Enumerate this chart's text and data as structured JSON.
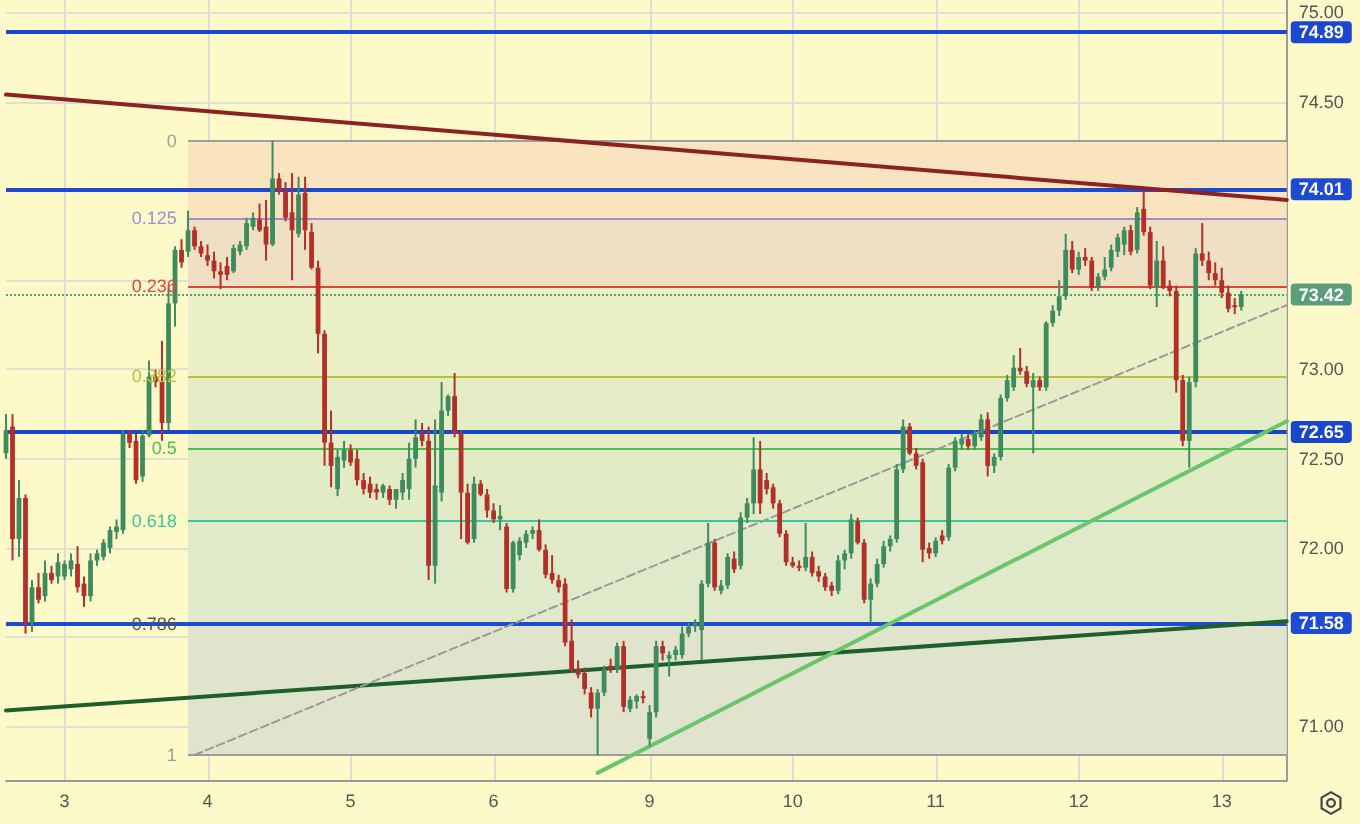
{
  "chart_data": {
    "type": "candlestick",
    "categories": [
      null,
      null,
      null,
      null,
      null,
      null,
      null,
      null,
      null,
      "3",
      null,
      null,
      null,
      null,
      null,
      null,
      null,
      null,
      null,
      null,
      null,
      null,
      null,
      null,
      null,
      null,
      null,
      null,
      null,
      null,
      null,
      "4",
      null,
      null,
      null,
      null,
      null,
      null,
      null,
      null,
      null,
      null,
      null,
      null,
      null,
      null,
      null,
      null,
      null,
      null,
      null,
      null,
      null,
      "5",
      null,
      null,
      null,
      null,
      null,
      null,
      null,
      null,
      null,
      null,
      null,
      null,
      null,
      null,
      null,
      null,
      null,
      null,
      null,
      null,
      null,
      "6",
      null,
      null,
      null,
      null,
      null,
      null,
      null,
      null,
      null,
      null,
      null,
      null,
      null,
      null,
      null,
      null,
      null,
      null,
      null,
      null,
      null,
      null,
      null,
      "9",
      null,
      null,
      null,
      null,
      null,
      null,
      null,
      null,
      null,
      null,
      null,
      null,
      null,
      null,
      null,
      null,
      null,
      null,
      null,
      null,
      null,
      "10",
      null,
      null,
      null,
      null,
      null,
      null,
      null,
      null,
      null,
      null,
      null,
      null,
      null,
      null,
      null,
      null,
      null,
      null,
      null,
      null,
      null,
      "11",
      null,
      null,
      null,
      null,
      null,
      null,
      null,
      null,
      null,
      null,
      null,
      null,
      null,
      null,
      null,
      null,
      null,
      null,
      null,
      null,
      null,
      "12",
      null,
      null,
      null,
      null,
      null,
      null,
      null,
      null,
      null,
      null,
      null,
      null,
      null,
      null,
      null,
      null,
      null,
      null,
      null,
      null,
      null,
      "13",
      null,
      null,
      null,
      null,
      null,
      null,
      null,
      null,
      null,
      null
    ],
    "ohlc": [
      [
        72.53,
        72.75,
        72.5,
        72.66
      ],
      [
        72.68,
        72.75,
        71.93,
        72.05
      ],
      [
        72.05,
        72.38,
        71.95,
        72.28
      ],
      [
        72.28,
        72.3,
        71.52,
        71.58
      ],
      [
        71.58,
        71.82,
        71.53,
        71.78
      ],
      [
        71.78,
        71.86,
        71.69,
        71.71
      ],
      [
        71.73,
        71.93,
        71.7,
        71.86
      ],
      [
        71.86,
        71.9,
        71.8,
        71.82
      ],
      [
        71.84,
        71.97,
        71.8,
        71.92
      ],
      [
        71.84,
        71.93,
        71.82,
        71.91
      ],
      [
        71.88,
        71.97,
        71.84,
        71.93
      ],
      [
        71.91,
        72.01,
        71.75,
        71.78
      ],
      [
        71.8,
        71.84,
        71.67,
        71.73
      ],
      [
        71.73,
        71.97,
        71.7,
        71.93
      ],
      [
        71.93,
        71.99,
        71.9,
        71.97
      ],
      [
        71.95,
        72.05,
        71.93,
        72.03
      ],
      [
        72.0,
        72.12,
        71.97,
        72.1
      ],
      [
        72.09,
        72.16,
        72.05,
        72.12
      ],
      [
        72.1,
        72.66,
        72.08,
        72.64
      ],
      [
        72.64,
        72.66,
        72.56,
        72.59
      ],
      [
        72.6,
        72.64,
        72.36,
        72.38
      ],
      [
        72.4,
        72.66,
        72.37,
        72.63
      ],
      [
        72.63,
        73.05,
        72.62,
        72.96
      ],
      [
        72.96,
        73.0,
        72.9,
        72.93
      ],
      [
        72.93,
        73.16,
        72.6,
        72.7
      ],
      [
        72.7,
        73.46,
        72.66,
        73.37
      ],
      [
        73.37,
        73.69,
        73.24,
        73.67
      ],
      [
        73.67,
        73.73,
        73.57,
        73.6
      ],
      [
        73.66,
        73.89,
        73.63,
        73.78
      ],
      [
        73.78,
        73.8,
        73.67,
        73.69
      ],
      [
        73.69,
        73.72,
        73.63,
        73.65
      ],
      [
        73.64,
        73.7,
        73.58,
        73.61
      ],
      [
        73.61,
        73.66,
        73.51,
        73.55
      ],
      [
        73.55,
        73.6,
        73.45,
        73.53
      ],
      [
        73.58,
        73.63,
        73.5,
        73.53
      ],
      [
        73.55,
        73.7,
        73.54,
        73.68
      ],
      [
        73.66,
        73.72,
        73.64,
        73.7
      ],
      [
        73.69,
        73.85,
        73.67,
        73.82
      ],
      [
        73.8,
        73.88,
        73.78,
        73.85
      ],
      [
        73.84,
        73.93,
        73.77,
        73.78
      ],
      [
        73.8,
        73.95,
        73.61,
        73.7
      ],
      [
        73.7,
        74.28,
        73.69,
        74.07
      ],
      [
        74.07,
        74.1,
        73.98,
        74.0
      ],
      [
        74.0,
        74.05,
        73.83,
        73.85
      ],
      [
        73.88,
        74.1,
        73.5,
        73.78
      ],
      [
        73.76,
        74.08,
        73.74,
        73.98
      ],
      [
        73.99,
        74.08,
        73.67,
        73.78
      ],
      [
        73.77,
        73.82,
        73.56,
        73.57
      ],
      [
        73.57,
        73.61,
        73.09,
        73.2
      ],
      [
        73.2,
        73.22,
        72.46,
        72.59
      ],
      [
        72.59,
        72.77,
        72.34,
        72.46
      ],
      [
        72.33,
        72.55,
        72.29,
        72.51
      ],
      [
        72.49,
        72.6,
        72.45,
        72.55
      ],
      [
        72.55,
        72.58,
        72.46,
        72.48
      ],
      [
        72.5,
        72.55,
        72.35,
        72.38
      ],
      [
        72.38,
        72.42,
        72.3,
        72.33
      ],
      [
        72.36,
        72.4,
        72.28,
        72.31
      ],
      [
        72.33,
        72.36,
        72.27,
        72.31
      ],
      [
        72.31,
        72.36,
        72.28,
        72.35
      ],
      [
        72.33,
        72.35,
        72.24,
        72.27
      ],
      [
        72.27,
        72.33,
        72.22,
        72.33
      ],
      [
        72.31,
        72.42,
        72.27,
        72.38
      ],
      [
        72.33,
        72.59,
        72.27,
        72.5
      ],
      [
        72.5,
        72.72,
        72.45,
        72.62
      ],
      [
        72.64,
        72.7,
        72.57,
        72.6
      ],
      [
        72.6,
        72.68,
        71.82,
        71.9
      ],
      [
        71.9,
        72.72,
        71.8,
        72.35
      ],
      [
        72.31,
        72.93,
        72.26,
        72.77
      ],
      [
        72.77,
        72.86,
        72.74,
        72.85
      ],
      [
        72.85,
        72.98,
        72.62,
        72.64
      ],
      [
        72.64,
        72.66,
        72.05,
        72.31
      ],
      [
        72.31,
        72.36,
        72.02,
        72.03
      ],
      [
        72.05,
        72.4,
        72.03,
        72.36
      ],
      [
        72.36,
        72.38,
        72.29,
        72.3
      ],
      [
        72.3,
        72.33,
        72.17,
        72.21
      ],
      [
        72.21,
        72.25,
        72.14,
        72.16
      ],
      [
        72.16,
        72.24,
        72.1,
        72.18
      ],
      [
        72.12,
        72.14,
        71.75,
        71.77
      ],
      [
        71.77,
        72.04,
        71.75,
        72.03
      ],
      [
        71.96,
        72.06,
        71.93,
        72.04
      ],
      [
        72.03,
        72.1,
        72.0,
        72.08
      ],
      [
        72.08,
        72.12,
        72.05,
        72.1
      ],
      [
        72.1,
        72.16,
        71.98,
        71.99
      ],
      [
        71.99,
        72.02,
        71.83,
        71.85
      ],
      [
        71.86,
        71.96,
        71.8,
        71.82
      ],
      [
        71.82,
        71.85,
        71.75,
        71.78
      ],
      [
        71.8,
        71.83,
        71.45,
        71.47
      ],
      [
        71.48,
        71.6,
        71.3,
        71.32
      ],
      [
        71.32,
        71.37,
        71.27,
        71.29
      ],
      [
        71.3,
        71.33,
        71.18,
        71.21
      ],
      [
        71.19,
        71.22,
        71.05,
        71.1
      ],
      [
        71.1,
        71.21,
        70.84,
        71.19
      ],
      [
        71.19,
        71.34,
        71.17,
        71.32
      ],
      [
        71.34,
        71.38,
        71.3,
        71.32
      ],
      [
        71.32,
        71.47,
        71.3,
        71.45
      ],
      [
        71.45,
        71.48,
        71.08,
        71.11
      ],
      [
        71.1,
        71.17,
        71.08,
        71.15
      ],
      [
        71.14,
        71.18,
        71.1,
        71.17
      ],
      [
        71.17,
        71.2,
        71.13,
        71.16
      ],
      [
        70.93,
        71.12,
        70.89,
        71.08
      ],
      [
        71.08,
        71.48,
        71.05,
        71.45
      ],
      [
        71.45,
        71.48,
        71.37,
        71.41
      ],
      [
        71.38,
        71.42,
        71.28,
        71.4
      ],
      [
        71.4,
        71.45,
        71.37,
        71.43
      ],
      [
        71.4,
        71.56,
        71.38,
        71.52
      ],
      [
        71.52,
        71.58,
        71.5,
        71.56
      ],
      [
        71.56,
        71.6,
        71.53,
        71.58
      ],
      [
        71.54,
        71.82,
        71.37,
        71.8
      ],
      [
        71.8,
        72.14,
        71.78,
        72.03
      ],
      [
        72.03,
        72.05,
        71.76,
        71.78
      ],
      [
        71.76,
        71.82,
        71.74,
        71.79
      ],
      [
        71.79,
        71.97,
        71.77,
        71.95
      ],
      [
        71.94,
        71.98,
        71.86,
        71.88
      ],
      [
        71.9,
        72.2,
        71.88,
        72.17
      ],
      [
        72.17,
        72.28,
        72.14,
        72.25
      ],
      [
        72.25,
        72.62,
        72.19,
        72.44
      ],
      [
        72.44,
        72.6,
        72.19,
        72.25
      ],
      [
        72.38,
        72.42,
        72.3,
        72.33
      ],
      [
        72.34,
        72.36,
        72.22,
        72.25
      ],
      [
        72.25,
        72.27,
        72.06,
        72.08
      ],
      [
        72.08,
        72.1,
        71.9,
        71.92
      ],
      [
        71.92,
        71.95,
        71.89,
        71.9
      ],
      [
        71.9,
        71.93,
        71.87,
        71.89
      ],
      [
        71.89,
        72.14,
        71.87,
        71.95
      ],
      [
        71.95,
        71.98,
        71.84,
        71.86
      ],
      [
        71.87,
        71.9,
        71.81,
        71.84
      ],
      [
        71.84,
        71.86,
        71.76,
        71.78
      ],
      [
        71.79,
        71.81,
        71.73,
        71.76
      ],
      [
        71.76,
        71.96,
        71.74,
        71.93
      ],
      [
        71.93,
        71.99,
        71.88,
        71.97
      ],
      [
        71.97,
        72.19,
        71.94,
        72.16
      ],
      [
        72.15,
        72.17,
        72.02,
        72.03
      ],
      [
        72.03,
        72.05,
        71.69,
        71.71
      ],
      [
        71.71,
        71.83,
        71.58,
        71.8
      ],
      [
        71.8,
        71.94,
        71.78,
        71.91
      ],
      [
        71.91,
        72.04,
        71.89,
        72.01
      ],
      [
        72.01,
        72.07,
        71.98,
        72.05
      ],
      [
        72.05,
        72.47,
        72.03,
        72.44
      ],
      [
        72.44,
        72.72,
        72.42,
        72.68
      ],
      [
        72.68,
        72.7,
        72.52,
        72.53
      ],
      [
        72.53,
        72.56,
        72.44,
        72.46
      ],
      [
        72.48,
        72.5,
        71.92,
        71.99
      ],
      [
        72.0,
        72.03,
        71.94,
        71.97
      ],
      [
        71.97,
        72.06,
        71.95,
        72.04
      ],
      [
        72.07,
        72.1,
        72.02,
        72.04
      ],
      [
        72.06,
        72.47,
        72.04,
        72.45
      ],
      [
        72.45,
        72.62,
        72.43,
        72.6
      ],
      [
        72.58,
        72.64,
        72.55,
        72.61
      ],
      [
        72.61,
        72.64,
        72.55,
        72.57
      ],
      [
        72.57,
        72.66,
        72.55,
        72.64
      ],
      [
        72.62,
        72.75,
        72.6,
        72.72
      ],
      [
        72.72,
        72.76,
        72.4,
        72.46
      ],
      [
        72.46,
        72.53,
        72.42,
        72.51
      ],
      [
        72.51,
        72.86,
        72.49,
        72.84
      ],
      [
        72.84,
        72.97,
        72.82,
        72.94
      ],
      [
        72.9,
        73.08,
        72.88,
        73.01
      ],
      [
        73.01,
        73.12,
        72.97,
        72.99
      ],
      [
        72.99,
        73.02,
        72.9,
        72.92
      ],
      [
        72.9,
        72.98,
        72.53,
        72.94
      ],
      [
        72.94,
        72.96,
        72.88,
        72.9
      ],
      [
        72.9,
        73.27,
        72.88,
        73.26
      ],
      [
        73.26,
        73.36,
        73.24,
        73.33
      ],
      [
        73.33,
        73.5,
        73.3,
        73.41
      ],
      [
        73.41,
        73.76,
        73.39,
        73.67
      ],
      [
        73.67,
        73.72,
        73.54,
        73.56
      ],
      [
        73.56,
        73.66,
        73.53,
        73.63
      ],
      [
        73.63,
        73.68,
        73.58,
        73.61
      ],
      [
        73.61,
        73.63,
        73.44,
        73.46
      ],
      [
        73.46,
        73.54,
        73.44,
        73.52
      ],
      [
        73.52,
        73.63,
        73.5,
        73.56
      ],
      [
        73.57,
        73.7,
        73.55,
        73.67
      ],
      [
        73.66,
        73.76,
        73.63,
        73.74
      ],
      [
        73.7,
        73.8,
        73.64,
        73.78
      ],
      [
        73.78,
        73.81,
        73.64,
        73.66
      ],
      [
        73.67,
        73.91,
        73.65,
        73.88
      ],
      [
        73.9,
        74.0,
        73.75,
        73.77
      ],
      [
        73.77,
        73.8,
        73.45,
        73.47
      ],
      [
        73.46,
        73.72,
        73.35,
        73.61
      ],
      [
        73.61,
        73.69,
        73.45,
        73.46
      ],
      [
        73.47,
        73.5,
        73.41,
        73.44
      ],
      [
        73.44,
        73.47,
        72.87,
        72.94
      ],
      [
        72.94,
        72.97,
        72.57,
        72.6
      ],
      [
        72.6,
        72.96,
        72.45,
        72.93
      ],
      [
        72.93,
        73.68,
        72.9,
        73.65
      ],
      [
        73.65,
        73.82,
        73.58,
        73.61
      ],
      [
        73.61,
        73.66,
        73.5,
        73.54
      ],
      [
        73.54,
        73.6,
        73.47,
        73.5
      ],
      [
        73.5,
        73.57,
        73.4,
        73.43
      ],
      [
        73.43,
        73.47,
        73.32,
        73.34
      ],
      [
        73.36,
        73.4,
        73.31,
        73.35
      ],
      [
        73.35,
        73.44,
        73.33,
        73.42
      ],
      null,
      null,
      null,
      null,
      null,
      null,
      null
    ],
    "colors": [
      "#3e8b5e",
      "#b33029",
      "#3e8b5e",
      "#b33029",
      "#3e8b5e",
      "#b33029",
      "#3e8b5e",
      "#b33029",
      "#3e8b5e",
      "#3e8b5e",
      "#3e8b5e",
      "#b33029",
      "#b33029",
      "#3e8b5e",
      "#3e8b5e",
      "#3e8b5e",
      "#3e8b5e",
      "#3e8b5e",
      "#3e8b5e",
      "#b33029",
      "#b33029",
      "#3e8b5e",
      "#3e8b5e",
      "#b33029",
      "#b33029",
      "#3e8b5e",
      "#3e8b5e",
      "#b33029",
      "#3e8b5e",
      "#b33029",
      "#b33029",
      "#b33029",
      "#b33029",
      "#b33029",
      "#b33029",
      "#3e8b5e",
      "#3e8b5e",
      "#3e8b5e",
      "#3e8b5e",
      "#b33029",
      "#b33029",
      "#3e8b5e",
      "#b33029",
      "#b33029",
      "#b33029",
      "#3e8b5e",
      "#b33029",
      "#b33029",
      "#b33029",
      "#b33029",
      "#b33029",
      "#3e8b5e",
      "#3e8b5e",
      "#b33029",
      "#b33029",
      "#b33029",
      "#b33029",
      "#b33029",
      "#3e8b5e",
      "#b33029",
      "#3e8b5e",
      "#3e8b5e",
      "#3e8b5e",
      "#3e8b5e",
      "#b33029",
      "#b33029",
      "#3e8b5e",
      "#3e8b5e",
      "#3e8b5e",
      "#b33029",
      "#b33029",
      "#b33029",
      "#3e8b5e",
      "#b33029",
      "#b33029",
      "#b33029",
      "#3e8b5e",
      "#b33029",
      "#3e8b5e",
      "#3e8b5e",
      "#3e8b5e",
      "#3e8b5e",
      "#b33029",
      "#b33029",
      "#b33029",
      "#b33029",
      "#b33029",
      "#b33029",
      "#b33029",
      "#b33029",
      "#b33029",
      "#3e8b5e",
      "#3e8b5e",
      "#b33029",
      "#3e8b5e",
      "#b33029",
      "#3e8b5e",
      "#3e8b5e",
      "#b33029",
      "#3e8b5e",
      "#3e8b5e",
      "#b33029",
      "#3e8b5e",
      "#3e8b5e",
      "#3e8b5e",
      "#3e8b5e",
      "#3e8b5e",
      "#3e8b5e",
      "#3e8b5e",
      "#b33029",
      "#3e8b5e",
      "#3e8b5e",
      "#b33029",
      "#3e8b5e",
      "#3e8b5e",
      "#3e8b5e",
      "#b33029",
      "#b33029",
      "#b33029",
      "#b33029",
      "#b33029",
      "#b33029",
      "#b33029",
      "#3e8b5e",
      "#b33029",
      "#b33029",
      "#b33029",
      "#b33029",
      "#3e8b5e",
      "#3e8b5e",
      "#3e8b5e",
      "#b33029",
      "#b33029",
      "#3e8b5e",
      "#3e8b5e",
      "#3e8b5e",
      "#3e8b5e",
      "#3e8b5e",
      "#3e8b5e",
      "#b33029",
      "#b33029",
      "#b33029",
      "#b33029",
      "#3e8b5e",
      "#b33029",
      "#3e8b5e",
      "#3e8b5e",
      "#3e8b5e",
      "#b33029",
      "#3e8b5e",
      "#3e8b5e",
      "#b33029",
      "#3e8b5e",
      "#3e8b5e",
      "#3e8b5e",
      "#3e8b5e",
      "#b33029",
      "#b33029",
      "#3e8b5e",
      "#b33029",
      "#3e8b5e",
      "#3e8b5e",
      "#3e8b5e",
      "#3e8b5e",
      "#b33029",
      "#3e8b5e",
      "#b33029",
      "#b33029",
      "#3e8b5e",
      "#3e8b5e",
      "#3e8b5e",
      "#3e8b5e",
      "#3e8b5e",
      "#b33029",
      "#3e8b5e",
      "#b33029",
      "#b33029",
      "#3e8b5e",
      "#b33029",
      "#b33029",
      "#b33029",
      "#b33029",
      "#3e8b5e",
      "#3e8b5e",
      "#b33029",
      "#b33029",
      "#b33029",
      "#b33029",
      "#b33029",
      "#b33029",
      "#3e8b5e",
      null,
      null,
      null,
      null,
      null,
      null,
      null
    ],
    "ylim": [
      70.7,
      75.07
    ],
    "yticks": [
      {
        "value": 71,
        "label": "71.00"
      },
      {
        "value": 71.5,
        "label": null
      },
      {
        "value": 72,
        "label": "72.00"
      },
      {
        "value": 72.5,
        "label": "72.50"
      },
      {
        "value": 73,
        "label": "73.00"
      },
      {
        "value": 73.5,
        "label": null
      },
      {
        "value": 74,
        "label": null
      },
      {
        "value": 74.5,
        "label": "74.50"
      },
      {
        "value": 75,
        "label": "75.00"
      }
    ],
    "y2lim": [
      1.04,
      -0.23
    ],
    "y2ticks": [
      0,
      0.125,
      0.236,
      0.382,
      0.5,
      0.618,
      0.786,
      1
    ],
    "grid": true,
    "bands": [
      {
        "axis": "y2",
        "from": 0,
        "to": 0.125,
        "color": "#fae4bf"
      },
      {
        "axis": "y2",
        "from": 0.125,
        "to": 0.236,
        "color": "#efdfc3"
      },
      {
        "axis": "y2",
        "from": 0.236,
        "to": 0.382,
        "color": "#ebefc6"
      },
      {
        "axis": "y2",
        "from": 0.382,
        "to": 0.5,
        "color": "#e5edc6"
      },
      {
        "axis": "y2",
        "from": 0.5,
        "to": 0.618,
        "color": "#e1ecc7"
      },
      {
        "axis": "y2",
        "from": 0.618,
        "to": 0.786,
        "color": "#e0eaca"
      },
      {
        "axis": "y2",
        "from": 0.786,
        "to": 1,
        "color": "#e1e4cd"
      }
    ],
    "ref_lines": [
      {
        "axis": "y2",
        "value": 0,
        "color": "#9e9e9e"
      },
      {
        "axis": "y2",
        "value": 0.125,
        "color": "#a48bd4"
      },
      {
        "axis": "y2",
        "value": 0.236,
        "color": "#e0443c"
      },
      {
        "axis": "y2",
        "value": 0.382,
        "color": "#b5c23a"
      },
      {
        "axis": "y2",
        "value": 0.5,
        "color": "#4cbf4c"
      },
      {
        "axis": "y2",
        "value": 0.618,
        "color": "#36c99a"
      },
      {
        "axis": "y2",
        "value": 1,
        "color": "#9b9b9b"
      },
      {
        "axis": "y",
        "value": 73.42,
        "label": "73.42",
        "color": "#5b9e7b",
        "line_style": "dotted"
      },
      {
        "axis": "y",
        "value": 74.89,
        "label": "74.89",
        "color": "#1c48cf"
      },
      {
        "axis": "y",
        "value": 74.01,
        "label": "74.01",
        "color": "#1e4ad2"
      },
      {
        "axis": "y",
        "value": 72.65,
        "label": "72.65",
        "color": "#1a46cc"
      },
      {
        "axis": "y",
        "value": 71.58,
        "label": "71.58",
        "color": "#1f4bd4"
      }
    ],
    "series": [
      {
        "type": "line",
        "color": "#8b2323",
        "values": [
          74.54,
          null,
          null,
          null,
          null,
          null,
          null,
          null,
          null,
          null,
          null,
          null,
          null,
          null,
          null,
          null,
          null,
          null,
          null,
          null,
          null,
          null,
          null,
          null,
          null,
          null,
          null,
          null,
          null,
          null,
          null,
          null,
          null,
          null,
          null,
          null,
          null,
          null,
          null,
          null,
          null,
          null,
          null,
          null,
          null,
          null,
          null,
          null,
          null,
          null,
          null,
          null,
          null,
          null,
          null,
          null,
          null,
          null,
          null,
          null,
          null,
          null,
          null,
          null,
          null,
          null,
          null,
          null,
          null,
          null,
          null,
          null,
          null,
          null,
          null,
          null,
          null,
          null,
          null,
          null,
          null,
          null,
          null,
          null,
          null,
          null,
          null,
          null,
          null,
          null,
          null,
          null,
          null,
          null,
          null,
          null,
          null,
          null,
          null,
          null,
          null,
          null,
          null,
          null,
          null,
          null,
          null,
          null,
          null,
          null,
          null,
          null,
          null,
          null,
          null,
          null,
          null,
          null,
          null,
          null,
          null,
          null,
          null,
          null,
          null,
          null,
          null,
          null,
          null,
          null,
          null,
          null,
          null,
          null,
          null,
          null,
          null,
          null,
          null,
          null,
          null,
          null,
          null,
          null,
          null,
          null,
          null,
          null,
          null,
          null,
          null,
          null,
          null,
          null,
          null,
          null,
          null,
          null,
          null,
          null,
          null,
          null,
          null,
          null,
          null,
          null,
          null,
          null,
          null,
          null,
          null,
          null,
          null,
          null,
          null,
          null,
          null,
          null,
          null,
          null,
          null,
          null,
          null,
          null,
          null,
          null,
          null,
          null,
          null,
          null,
          null,
          null,
          null,
          null,
          null,
          null,
          null,
          73.95
        ]
      },
      {
        "type": "line",
        "color": "#1f5f2a",
        "values": [
          71.09,
          null,
          null,
          null,
          null,
          null,
          null,
          null,
          null,
          null,
          null,
          null,
          null,
          null,
          null,
          null,
          null,
          null,
          null,
          null,
          null,
          null,
          null,
          null,
          null,
          null,
          null,
          null,
          null,
          null,
          null,
          null,
          null,
          null,
          null,
          null,
          null,
          null,
          null,
          null,
          null,
          null,
          null,
          null,
          null,
          null,
          null,
          null,
          null,
          null,
          null,
          null,
          null,
          null,
          null,
          null,
          null,
          null,
          null,
          null,
          null,
          null,
          null,
          null,
          null,
          null,
          null,
          null,
          null,
          null,
          null,
          null,
          null,
          null,
          null,
          null,
          null,
          null,
          null,
          null,
          null,
          null,
          null,
          null,
          null,
          null,
          null,
          null,
          null,
          null,
          null,
          null,
          null,
          null,
          null,
          null,
          null,
          null,
          null,
          null,
          null,
          null,
          null,
          null,
          null,
          null,
          null,
          null,
          null,
          null,
          null,
          null,
          null,
          null,
          null,
          null,
          null,
          null,
          null,
          null,
          null,
          null,
          null,
          null,
          null,
          null,
          null,
          null,
          null,
          null,
          null,
          null,
          null,
          null,
          null,
          null,
          null,
          null,
          null,
          null,
          null,
          null,
          null,
          null,
          null,
          null,
          null,
          null,
          null,
          null,
          null,
          null,
          null,
          null,
          null,
          null,
          null,
          null,
          null,
          null,
          null,
          null,
          null,
          null,
          null,
          null,
          null,
          null,
          null,
          null,
          null,
          null,
          null,
          null,
          null,
          null,
          null,
          null,
          null,
          null,
          null,
          null,
          null,
          null,
          null,
          null,
          null,
          null,
          null,
          null,
          null,
          null,
          null,
          null,
          null,
          null,
          null,
          71.59
        ]
      },
      {
        "type": "line",
        "color": "#6cc46c",
        "values": [
          null,
          null,
          null,
          null,
          null,
          null,
          null,
          null,
          null,
          null,
          null,
          null,
          null,
          null,
          null,
          null,
          null,
          null,
          null,
          null,
          null,
          null,
          null,
          null,
          null,
          null,
          null,
          null,
          null,
          null,
          null,
          null,
          null,
          null,
          null,
          null,
          null,
          null,
          null,
          null,
          null,
          null,
          null,
          null,
          null,
          null,
          null,
          null,
          null,
          null,
          null,
          null,
          null,
          null,
          null,
          null,
          null,
          null,
          null,
          null,
          null,
          null,
          null,
          null,
          null,
          null,
          null,
          null,
          null,
          null,
          null,
          null,
          null,
          null,
          null,
          null,
          null,
          null,
          null,
          null,
          null,
          null,
          null,
          null,
          null,
          null,
          null,
          null,
          null,
          null,
          null,
          70.74,
          null,
          null,
          null,
          null,
          null,
          null,
          null,
          null,
          null,
          null,
          null,
          null,
          null,
          null,
          null,
          null,
          null,
          null,
          null,
          null,
          null,
          null,
          null,
          null,
          null,
          null,
          null,
          null,
          null,
          null,
          null,
          null,
          null,
          null,
          null,
          null,
          null,
          null,
          null,
          null,
          null,
          null,
          null,
          null,
          null,
          null,
          null,
          null,
          null,
          null,
          null,
          null,
          null,
          null,
          null,
          null,
          null,
          null,
          null,
          null,
          null,
          null,
          null,
          null,
          null,
          null,
          null,
          null,
          null,
          null,
          null,
          null,
          null,
          null,
          null,
          null,
          null,
          null,
          null,
          null,
          null,
          null,
          null,
          null,
          null,
          null,
          null,
          null,
          null,
          null,
          null,
          null,
          null,
          null,
          null,
          null,
          null,
          null,
          null,
          null,
          null,
          null,
          null,
          null,
          null,
          72.71
        ]
      },
      {
        "type": "line",
        "color": "#9a9a9a",
        "line_style": "dashed",
        "values": [
          null,
          null,
          null,
          null,
          null,
          null,
          null,
          null,
          null,
          null,
          null,
          null,
          null,
          null,
          null,
          null,
          null,
          null,
          null,
          null,
          null,
          null,
          null,
          null,
          null,
          null,
          null,
          null,
          null,
          70.84,
          null,
          null,
          null,
          null,
          null,
          null,
          null,
          null,
          null,
          null,
          null,
          null,
          null,
          null,
          null,
          null,
          null,
          null,
          null,
          null,
          null,
          null,
          null,
          null,
          null,
          null,
          null,
          null,
          null,
          null,
          null,
          null,
          null,
          null,
          null,
          null,
          null,
          null,
          null,
          null,
          null,
          null,
          null,
          null,
          null,
          null,
          null,
          null,
          null,
          null,
          null,
          null,
          null,
          null,
          null,
          null,
          null,
          null,
          null,
          null,
          null,
          null,
          null,
          null,
          null,
          null,
          null,
          null,
          null,
          null,
          null,
          null,
          null,
          null,
          null,
          null,
          null,
          null,
          null,
          null,
          null,
          null,
          null,
          null,
          null,
          null,
          null,
          null,
          null,
          null,
          null,
          null,
          null,
          null,
          null,
          null,
          null,
          null,
          null,
          null,
          null,
          null,
          null,
          null,
          null,
          null,
          null,
          null,
          null,
          null,
          null,
          null,
          null,
          null,
          null,
          null,
          null,
          null,
          null,
          null,
          null,
          null,
          null,
          null,
          null,
          null,
          null,
          null,
          null,
          null,
          null,
          null,
          null,
          null,
          null,
          null,
          null,
          null,
          null,
          null,
          null,
          null,
          null,
          null,
          null,
          null,
          null,
          null,
          null,
          null,
          null,
          null,
          null,
          null,
          null,
          null,
          null,
          null,
          null,
          null,
          null,
          null,
          null,
          null,
          null,
          null,
          null,
          73.36
        ]
      }
    ]
  }
}
